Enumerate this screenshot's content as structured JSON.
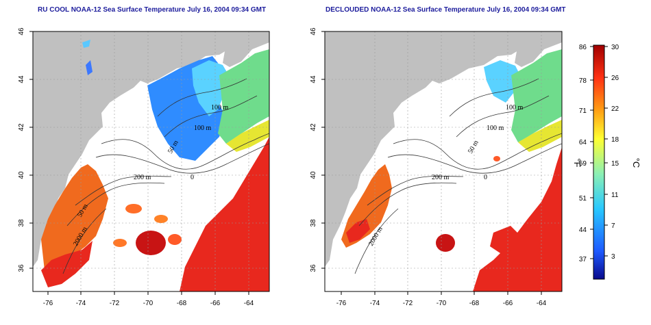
{
  "maps": [
    {
      "id": "left",
      "title": "RU COOL NOAA-12 Sea Surface Temperature July 16, 2004 09:34 GMT",
      "lon_ticks": [
        "-76",
        "-74",
        "-72",
        "-70",
        "-68",
        "-66",
        "-64"
      ],
      "lat_ticks": [
        "46",
        "44",
        "42",
        "40",
        "38",
        "36"
      ],
      "contour_labels": [
        "100 m",
        "100 m",
        "50 m",
        "200 m",
        "2000 m",
        "50 m",
        "0"
      ]
    },
    {
      "id": "right",
      "title": "DECLOUDED NOAA-12 Sea Surface Temperature July 16, 2004 09:34 GMT",
      "lon_ticks": [
        "-76",
        "-74",
        "-72",
        "-70",
        "-68",
        "-66",
        "-64"
      ],
      "lat_ticks": [
        "46",
        "44",
        "42",
        "40",
        "38",
        "36"
      ],
      "contour_labels": [
        "100 m",
        "100 m",
        "50 m",
        "200 m",
        "2000 m",
        "0"
      ]
    }
  ],
  "colorbar": {
    "fahrenheit_ticks": [
      "86",
      "78",
      "71",
      "64",
      "59",
      "51",
      "44",
      "37"
    ],
    "celsius_ticks": [
      "30",
      "26",
      "22",
      "18",
      "15",
      "11",
      "7",
      "3"
    ],
    "fahrenheit_unit": "°F",
    "celsius_unit": "°C",
    "colors": [
      "#0a0a8c",
      "#1e5aff",
      "#28c8ff",
      "#8cf0b4",
      "#ffff32",
      "#ffa014",
      "#ff3214",
      "#a00000"
    ]
  },
  "colors": {
    "land": "#c0c0c0",
    "cloud": "#ffffff",
    "warm": "#e8281e",
    "shelf_orange": "#f06a1e",
    "cold_blue": "#2878ff",
    "cyan": "#3cc8ff",
    "green": "#78dc8c",
    "yellow": "#e6e632"
  }
}
